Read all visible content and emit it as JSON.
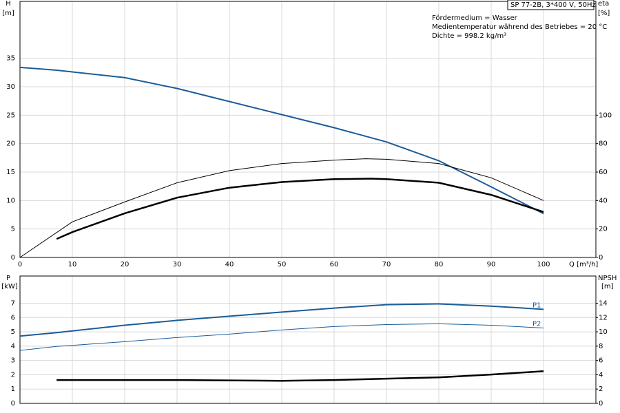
{
  "chart_data": [
    {
      "type": "line",
      "title": "SP 77-2B, 3*400 V, 50Hz",
      "annotations": [
        "Fördermedium = Wasser",
        "Medientemperatur während des Betriebes = 20 °C",
        "Dichte = 998.2 kg/m³"
      ],
      "xlabel": "Q [m³/h]",
      "ylabel": "H",
      "yunit": "[m]",
      "y2label": "eta",
      "y2unit": "[%]",
      "xlim": [
        0,
        110
      ],
      "xticks": [
        0,
        10,
        20,
        30,
        40,
        50,
        60,
        70,
        80,
        90,
        100
      ],
      "ylim": [
        0,
        45
      ],
      "yticks": [
        0,
        5,
        10,
        15,
        20,
        25,
        30,
        35
      ],
      "y2lim": [
        0,
        180
      ],
      "y2ticks": [
        0,
        20,
        40,
        60,
        80,
        100
      ],
      "grid": true,
      "series": [
        {
          "color": "#1b5c99",
          "width": 2,
          "x": [
            0,
            7,
            20,
            30,
            40,
            50,
            60,
            70,
            80,
            90,
            100
          ],
          "values": [
            33.4,
            32.9,
            31.6,
            29.7,
            27.4,
            25.1,
            22.8,
            20.3,
            17.0,
            12.4,
            7.7
          ]
        },
        {
          "color": "#000000",
          "width": 1,
          "axis": "y2",
          "x": [
            0,
            10,
            20,
            30,
            40,
            50,
            60,
            66,
            70,
            80,
            90,
            100
          ],
          "values": [
            0,
            25,
            39,
            52.5,
            61,
            66,
            68.4,
            69.4,
            69,
            66,
            56,
            40
          ]
        },
        {
          "color": "#000000",
          "width": 2.5,
          "axis": "y2",
          "x": [
            7,
            10,
            20,
            30,
            40,
            50,
            60,
            67,
            70,
            80,
            90,
            100
          ],
          "values": [
            13,
            17.8,
            31,
            42,
            49,
            53,
            55,
            55.4,
            55,
            52.5,
            44,
            32
          ]
        }
      ]
    },
    {
      "type": "line",
      "ylabel": "P",
      "yunit": "[kW]",
      "y2label": "NPSH",
      "y2unit": "[m]",
      "xlim": [
        0,
        110
      ],
      "xticks": [
        0,
        10,
        20,
        30,
        40,
        50,
        60,
        70,
        80,
        90,
        100
      ],
      "ylim": [
        0,
        8.9
      ],
      "yticks": [
        0,
        1,
        2,
        3,
        4,
        5,
        6,
        7
      ],
      "y2lim": [
        0,
        17.8
      ],
      "y2ticks": [
        0,
        2,
        4,
        6,
        8,
        10,
        12,
        14
      ],
      "grid": true,
      "series": [
        {
          "label": "P1",
          "color": "#1b5c99",
          "width": 2,
          "x": [
            0,
            7,
            20,
            30,
            40,
            50,
            60,
            70,
            80,
            90,
            100
          ],
          "values": [
            4.7,
            4.94,
            5.46,
            5.8,
            6.09,
            6.38,
            6.66,
            6.9,
            6.95,
            6.8,
            6.57
          ]
        },
        {
          "label": "P2",
          "color": "#1b5c99",
          "width": 1,
          "x": [
            0,
            7,
            20,
            30,
            40,
            50,
            60,
            70,
            80,
            90,
            100
          ],
          "values": [
            3.7,
            3.98,
            4.31,
            4.6,
            4.84,
            5.13,
            5.37,
            5.51,
            5.56,
            5.46,
            5.27
          ]
        },
        {
          "color": "#000000",
          "width": 2.5,
          "axis": "y2",
          "x": [
            7,
            30,
            50,
            60,
            70,
            80,
            90,
            100
          ],
          "values": [
            3.26,
            3.26,
            3.16,
            3.26,
            3.45,
            3.64,
            4.03,
            4.5
          ]
        }
      ]
    }
  ]
}
